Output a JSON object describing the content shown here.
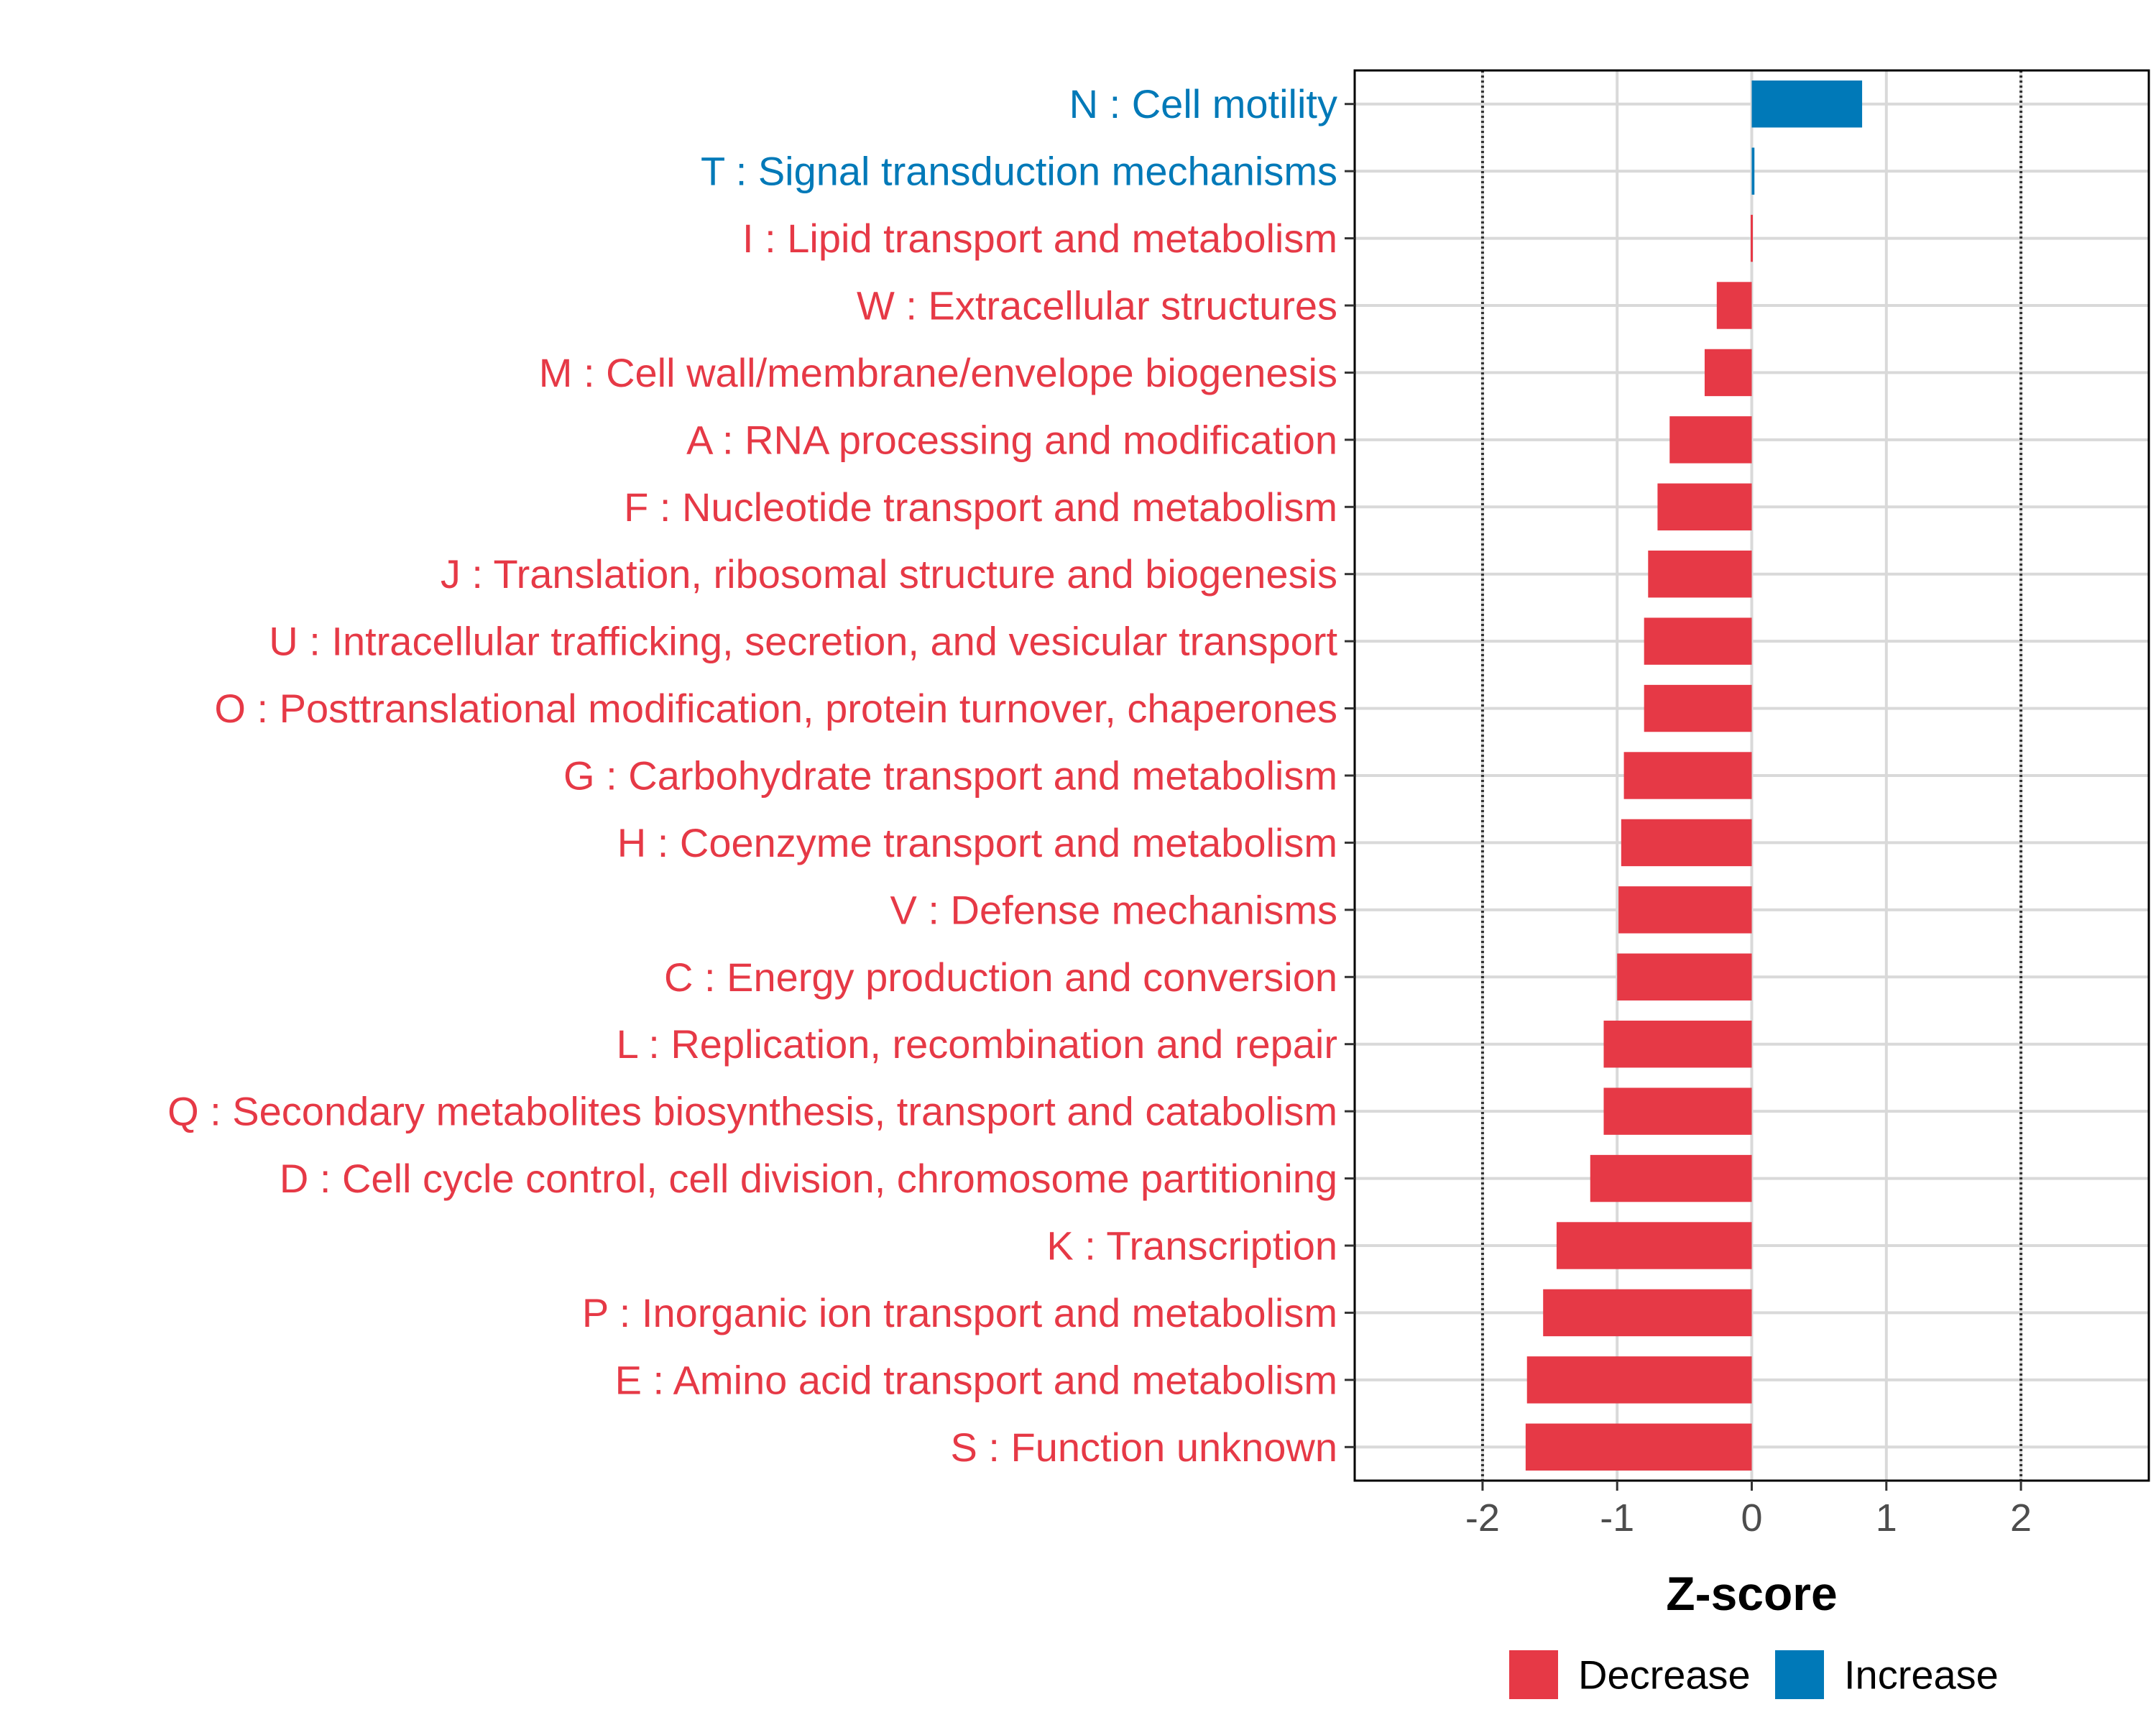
{
  "chart_data": {
    "type": "bar",
    "orientation": "horizontal",
    "title": "",
    "xlabel": "Z-score",
    "ylabel": "",
    "xlim": [
      -2.95,
      2.95
    ],
    "xticks": [
      {
        "value": -2,
        "label": "-2"
      },
      {
        "value": -1,
        "label": "-1"
      },
      {
        "value": 0,
        "label": "0"
      },
      {
        "value": 1,
        "label": "1"
      },
      {
        "value": 2,
        "label": "2"
      }
    ],
    "reference_lines": [
      -2,
      2
    ],
    "grid": true,
    "categories": [
      {
        "label": "N : Cell motility",
        "value": 0.82,
        "group": "Increase"
      },
      {
        "label": "T : Signal transduction mechanisms",
        "value": 0.02,
        "group": "Increase"
      },
      {
        "label": "I : Lipid transport and metabolism",
        "value": -0.01,
        "group": "Decrease"
      },
      {
        "label": "W : Extracellular structures",
        "value": -0.26,
        "group": "Decrease"
      },
      {
        "label": "M : Cell wall/membrane/envelope biogenesis",
        "value": -0.35,
        "group": "Decrease"
      },
      {
        "label": "A : RNA processing and modification",
        "value": -0.61,
        "group": "Decrease"
      },
      {
        "label": "F : Nucleotide transport and metabolism",
        "value": -0.7,
        "group": "Decrease"
      },
      {
        "label": "J : Translation, ribosomal structure and biogenesis",
        "value": -0.77,
        "group": "Decrease"
      },
      {
        "label": "U : Intracellular trafficking, secretion, and vesicular transport",
        "value": -0.8,
        "group": "Decrease"
      },
      {
        "label": "O : Posttranslational modification, protein turnover, chaperones",
        "value": -0.8,
        "group": "Decrease"
      },
      {
        "label": "G : Carbohydrate transport and metabolism",
        "value": -0.95,
        "group": "Decrease"
      },
      {
        "label": "H : Coenzyme transport and metabolism",
        "value": -0.97,
        "group": "Decrease"
      },
      {
        "label": "V : Defense mechanisms",
        "value": -0.99,
        "group": "Decrease"
      },
      {
        "label": "C : Energy production and conversion",
        "value": -1.0,
        "group": "Decrease"
      },
      {
        "label": "L : Replication, recombination and repair",
        "value": -1.1,
        "group": "Decrease"
      },
      {
        "label": "Q : Secondary metabolites biosynthesis, transport and catabolism",
        "value": -1.1,
        "group": "Decrease"
      },
      {
        "label": "D : Cell cycle control, cell division, chromosome partitioning",
        "value": -1.2,
        "group": "Decrease"
      },
      {
        "label": "K : Transcription",
        "value": -1.45,
        "group": "Decrease"
      },
      {
        "label": "P : Inorganic ion transport and metabolism",
        "value": -1.55,
        "group": "Decrease"
      },
      {
        "label": "E : Amino acid transport and metabolism",
        "value": -1.67,
        "group": "Decrease"
      },
      {
        "label": "S : Function unknown",
        "value": -1.68,
        "group": "Decrease"
      }
    ],
    "legend": {
      "position": "bottom",
      "entries": [
        {
          "label": "Decrease",
          "color": "#e63946"
        },
        {
          "label": "Increase",
          "color": "#0079b8"
        }
      ]
    },
    "colors": {
      "Decrease": "#e63946",
      "Increase": "#0079b8"
    }
  }
}
